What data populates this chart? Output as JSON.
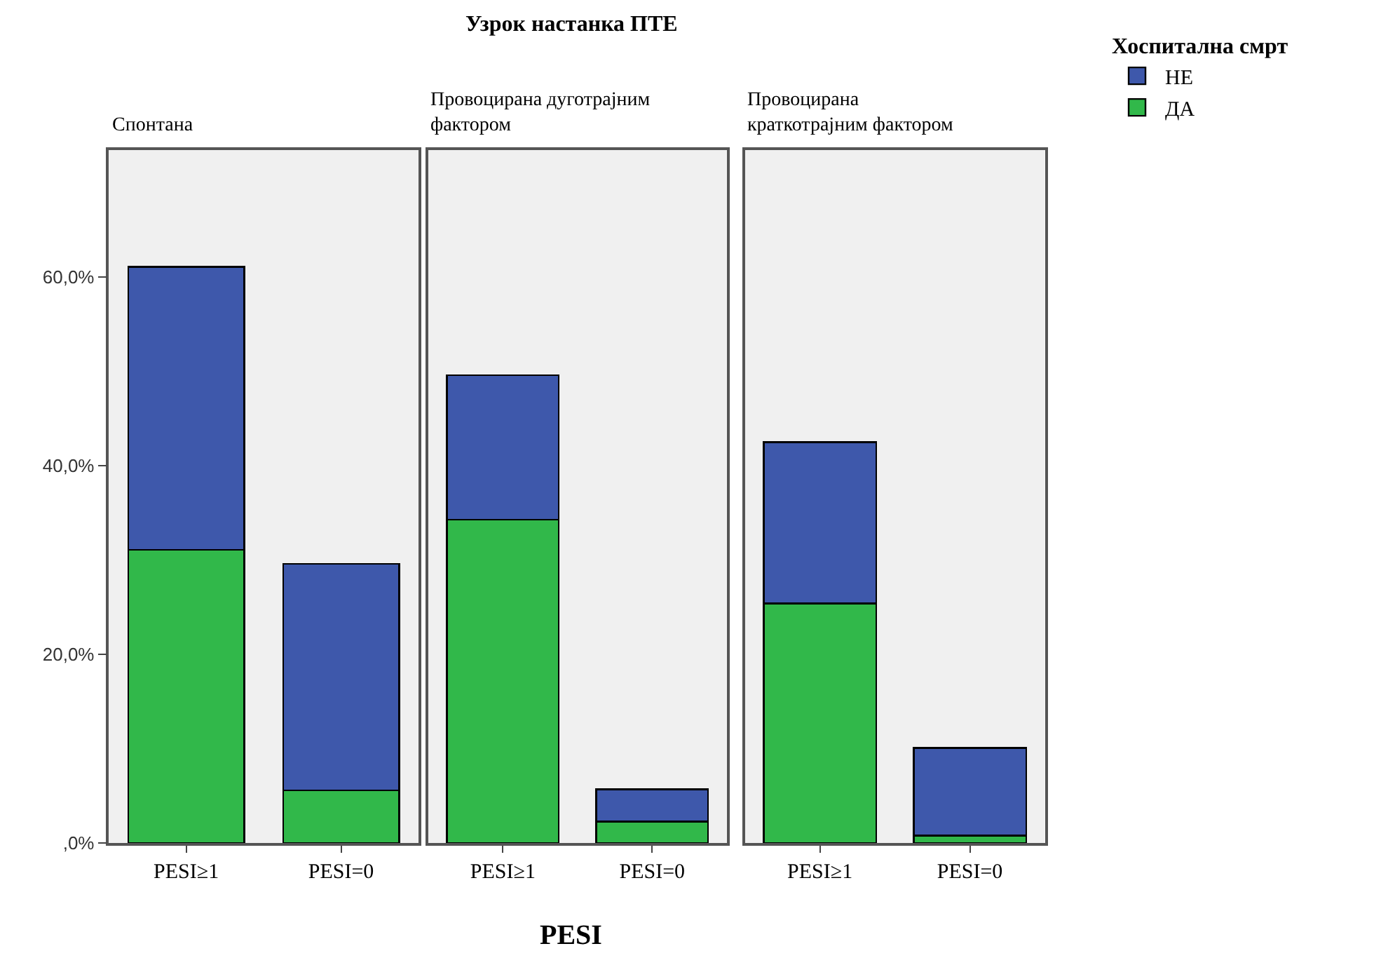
{
  "chart_data": [
    {
      "type": "bar",
      "stacked": true,
      "title": "Спонтана",
      "annotations": [
        "Узрок настанка ПТЕ"
      ],
      "categories": [
        "PESI≥1",
        "PESI=0"
      ],
      "series": [
        {
          "color": "#31b84a",
          "values": [
            31.1,
            5.6
          ]
        },
        {
          "color": "#3e58ab",
          "values": [
            30.0,
            24.0
          ]
        }
      ],
      "ylim": [
        0,
        73.5
      ],
      "yticks": [
        {
          "value": 0,
          "label": ",0%"
        },
        {
          "value": 20,
          "label": "20,0%"
        },
        {
          "value": 40,
          "label": "40,0%"
        },
        {
          "value": 60,
          "label": "60,0%"
        }
      ],
      "grid": false
    },
    {
      "type": "bar",
      "stacked": true,
      "title": "Провоцирана дуготрајним фактором",
      "xlabel": "PESI",
      "categories": [
        "PESI≥1",
        "PESI=0"
      ],
      "series": [
        {
          "color": "#31b84a",
          "values": [
            34.3,
            2.3
          ]
        },
        {
          "color": "#3e58ab",
          "values": [
            15.3,
            3.4
          ]
        }
      ],
      "ylim": [
        0,
        73.5
      ],
      "tick_labels": "x",
      "grid": false
    },
    {
      "type": "bar",
      "stacked": true,
      "title": "Провоцирана краткотрајним фактором",
      "legend_title": "Хоспитална смрт",
      "categories": [
        "PESI≥1",
        "PESI=0"
      ],
      "series": [
        {
          "name": "ДА",
          "color": "#31b84a",
          "values": [
            25.4,
            0.8
          ]
        },
        {
          "name": "НЕ",
          "color": "#3e58ab",
          "values": [
            17.1,
            9.3
          ]
        }
      ],
      "ylim": [
        0,
        73.5
      ],
      "tick_labels": "x",
      "grid": false,
      "legend": "top right"
    }
  ]
}
